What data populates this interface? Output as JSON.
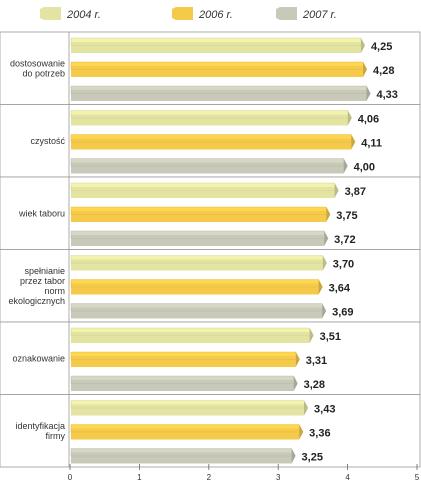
{
  "chart_data": {
    "type": "bar",
    "orientation": "horizontal",
    "categories": [
      "dostosowanie do potrzeb",
      "czystość",
      "wiek taboru",
      "spełnianie przez tabor norm ekologicznych",
      "oznakowanie",
      "identyfikacja firmy"
    ],
    "category_lines": [
      [
        "dostosowanie",
        "do potrzeb"
      ],
      [
        "czystość"
      ],
      [
        "wiek taboru"
      ],
      [
        "spełnianie",
        "przez tabor",
        "norm",
        "ekologicznych"
      ],
      [
        "oznakowanie"
      ],
      [
        "identyfikacja",
        "firmy"
      ]
    ],
    "series": [
      {
        "name": "2004 r.",
        "values": [
          4.25,
          4.06,
          3.87,
          3.7,
          3.51,
          3.43
        ],
        "labels": [
          "4,25",
          "4,06",
          "3,87",
          "3,70",
          "3,51",
          "3,43"
        ],
        "color": "#e3e3a2"
      },
      {
        "name": "2006 r.",
        "values": [
          4.28,
          4.11,
          3.75,
          3.64,
          3.31,
          3.36
        ],
        "labels": [
          "4,28",
          "4,11",
          "3,75",
          "3,64",
          "3,31",
          "3,36"
        ],
        "color": "#f5c94a"
      },
      {
        "name": "2007 r.",
        "values": [
          4.33,
          4.0,
          3.72,
          3.69,
          3.28,
          3.25
        ],
        "labels": [
          "4,33",
          "4,00",
          "3,72",
          "3,69",
          "3,28",
          "3,25"
        ],
        "color": "#c9c9b9"
      }
    ],
    "xlim": [
      0,
      5
    ],
    "x_ticks": [
      "0",
      "1",
      "2",
      "3",
      "4",
      "5"
    ],
    "legend_position": "top",
    "grid": false,
    "title": "",
    "xlabel": "",
    "ylabel": ""
  }
}
